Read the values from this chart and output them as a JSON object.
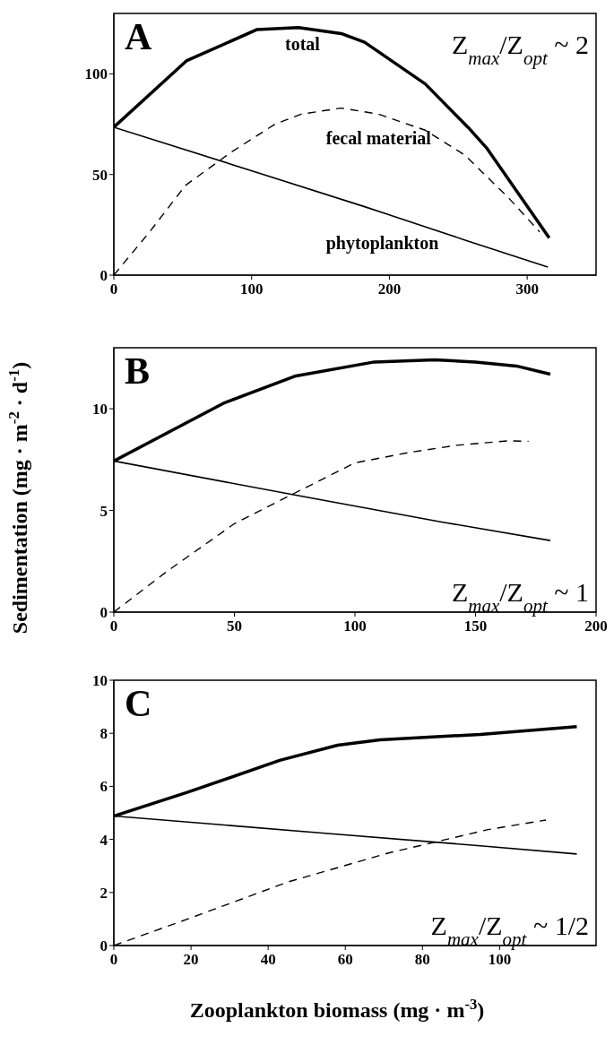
{
  "chart_data": [
    {
      "type": "line",
      "annotations": [
        "A",
        "Z$_{max}$/Z$_{opt}$ ~ 2"
      ],
      "xlim": [
        0,
        350
      ],
      "xticks": [
        0,
        100,
        200,
        300
      ],
      "ylim": [
        0,
        130
      ],
      "yticks": [
        0,
        50,
        100
      ],
      "grid": false,
      "legend": false,
      "marker": "none",
      "series": [
        {
          "name": "total",
          "color": "#000000",
          "line_style": "solid",
          "x": [
            0,
            53,
            104,
            134,
            165,
            182,
            226,
            257,
            271,
            316
          ],
          "values": [
            73.5,
            106.6,
            122,
            123,
            120,
            115.7,
            95,
            73.5,
            62.8,
            18.5
          ]
        },
        {
          "name": "fecal material",
          "color": "#000000",
          "line_style": "dashed",
          "x": [
            0,
            26,
            52,
            85,
            117,
            136,
            165,
            192,
            226,
            255,
            287,
            309
          ],
          "values": [
            0,
            21.5,
            44.6,
            61,
            75,
            80,
            83,
            80,
            72,
            59.5,
            38,
            21.5
          ]
        },
        {
          "name": "phytoplankton",
          "color": "#000000",
          "line_style": "solid",
          "x": [
            0,
            104,
            182,
            197,
            255,
            315
          ],
          "values": [
            73.5,
            51,
            34,
            30.6,
            17.4,
            4
          ]
        }
      ]
    },
    {
      "type": "line",
      "ylabel": "Sedimentation (mg · m$^{-2}$ · d$^{-1}$)",
      "annotations": [
        "B",
        "Z$_{max}$/Z$_{opt}$ ~ 1"
      ],
      "xlim": [
        0,
        200
      ],
      "xticks": [
        0,
        50,
        100,
        150,
        200
      ],
      "ylim": [
        0,
        13
      ],
      "yticks": [
        0,
        5,
        10
      ],
      "grid": false,
      "legend": false,
      "marker": "none",
      "series": [
        {
          "color": "#000000",
          "line_style": "solid",
          "x": [
            0,
            46,
            75,
            108,
            133,
            150,
            167,
            181
          ],
          "values": [
            7.43,
            10.3,
            11.6,
            12.3,
            12.4,
            12.3,
            12.1,
            11.7
          ]
        },
        {
          "color": "#000000",
          "line_style": "dashed",
          "x": [
            0,
            22,
            37.5,
            50,
            75,
            100,
            122,
            142,
            163,
            172
          ],
          "values": [
            0,
            2,
            3.3,
            4.35,
            5.85,
            7.34,
            7.84,
            8.2,
            8.42,
            8.4
          ]
        },
        {
          "color": "#000000",
          "line_style": "solid",
          "x": [
            0,
            75,
            136,
            181
          ],
          "values": [
            7.43,
            5.76,
            4.43,
            3.52
          ]
        }
      ]
    },
    {
      "type": "line",
      "xlabel": "Zooplankton biomass (mg · m$^{-3}$)",
      "annotations": [
        "C",
        "Z$_{max}$/Z$_{opt}$ ~ 1/2"
      ],
      "xlim": [
        0,
        125
      ],
      "xticks": [
        0,
        20,
        40,
        60,
        80,
        100
      ],
      "ylim": [
        0,
        10
      ],
      "yticks": [
        0,
        2,
        4,
        6,
        8,
        10
      ],
      "grid": false,
      "legend": false,
      "marker": "none",
      "series": [
        {
          "color": "#000000",
          "line_style": "solid",
          "x": [
            0,
            19,
            43,
            58,
            69,
            95,
            120
          ],
          "values": [
            4.88,
            5.77,
            6.98,
            7.55,
            7.75,
            7.96,
            8.25
          ]
        },
        {
          "color": "#000000",
          "line_style": "dashed",
          "x": [
            0,
            19,
            45,
            71,
            97,
            112
          ],
          "values": [
            0,
            0.99,
            2.39,
            3.48,
            4.37,
            4.73
          ]
        },
        {
          "color": "#000000",
          "line_style": "solid",
          "x": [
            0,
            54,
            95,
            120
          ],
          "values": [
            4.88,
            4.24,
            3.76,
            3.45
          ]
        }
      ]
    }
  ]
}
